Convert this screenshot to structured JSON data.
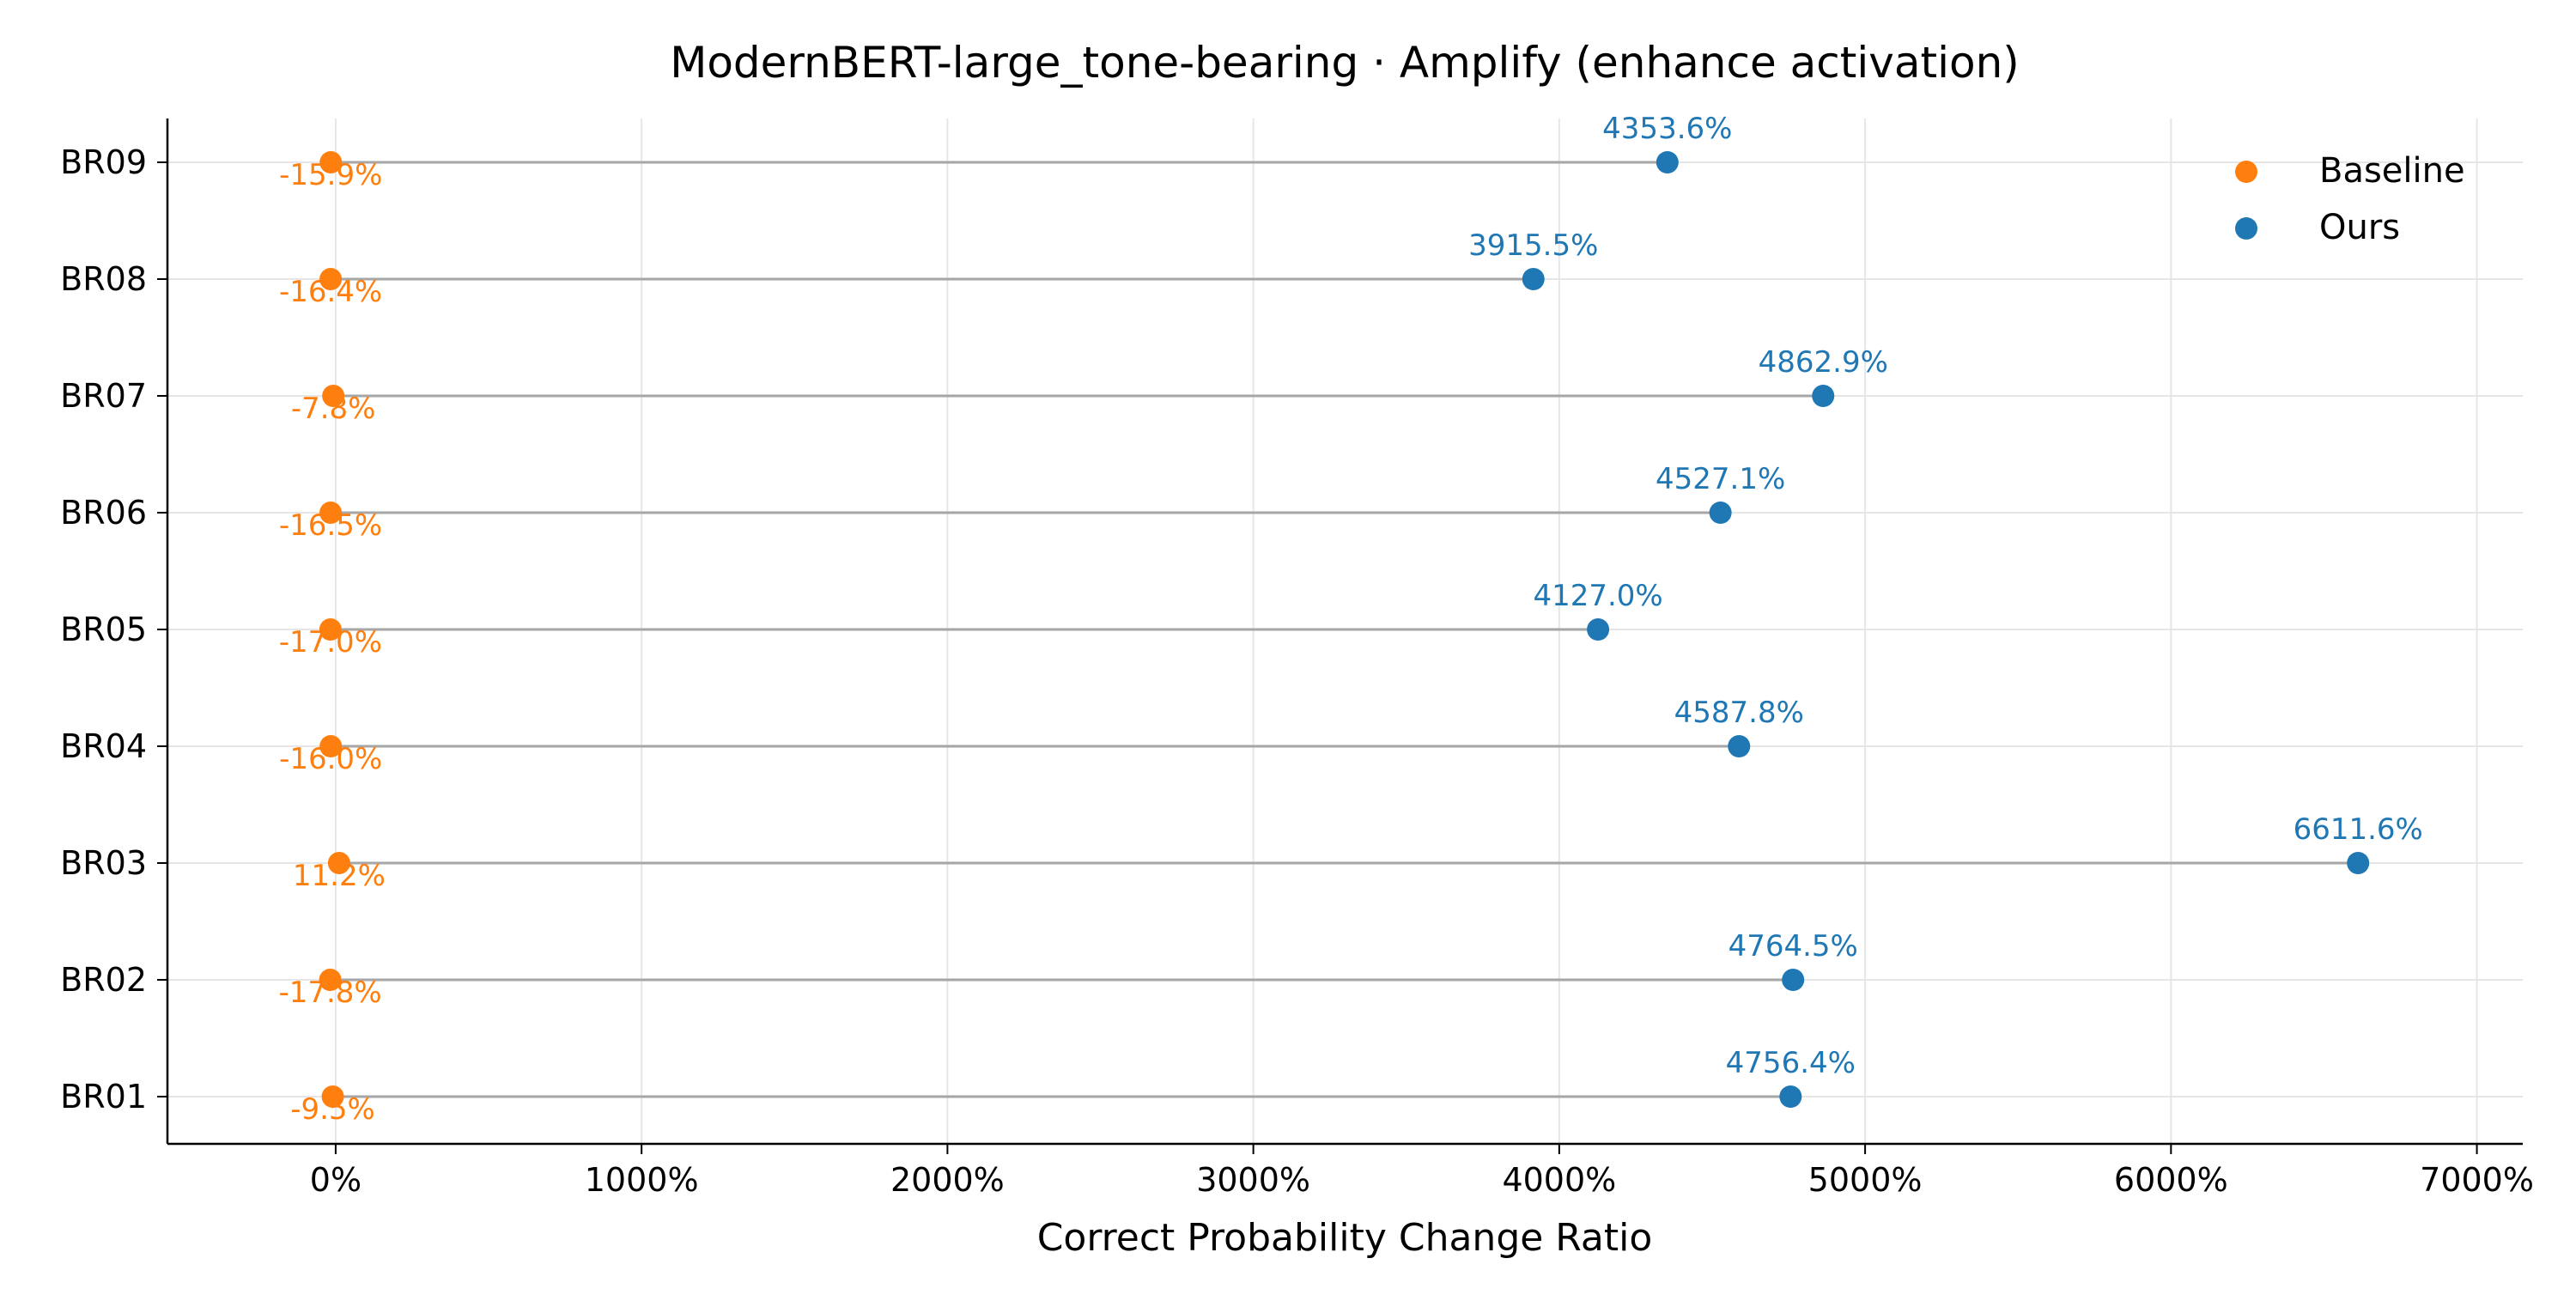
{
  "chart_data": {
    "type": "dumbbell",
    "title": "ModernBERT-large_tone-bearing · Amplify (enhance activation)",
    "xlabel": "Correct Probability Change Ratio",
    "ylabel": "",
    "xlim": [
      -550,
      7150
    ],
    "x_ticks": [
      0,
      1000,
      2000,
      3000,
      4000,
      5000,
      6000,
      7000
    ],
    "x_tick_labels": [
      "0%",
      "1000%",
      "2000%",
      "3000%",
      "4000%",
      "5000%",
      "6000%",
      "7000%"
    ],
    "categories": [
      "BR01",
      "BR02",
      "BR03",
      "BR04",
      "BR05",
      "BR06",
      "BR07",
      "BR08",
      "BR09"
    ],
    "grid": true,
    "legend_position": "top-right",
    "series": [
      {
        "name": "Baseline",
        "color": "#ff7f0e",
        "values": [
          -9.5,
          -17.8,
          11.2,
          -16.0,
          -17.0,
          -16.5,
          -7.8,
          -16.4,
          -15.9
        ],
        "labels": [
          "-9.5%",
          "-17.8%",
          "11.2%",
          "-16.0%",
          "-17.0%",
          "-16.5%",
          "-7.8%",
          "-16.4%",
          "-15.9%"
        ]
      },
      {
        "name": "Ours",
        "color": "#1f77b4",
        "values": [
          4756.4,
          4764.5,
          6611.6,
          4587.8,
          4127.0,
          4527.1,
          4862.9,
          3915.5,
          4353.6
        ],
        "labels": [
          "4756.4%",
          "4764.5%",
          "6611.6%",
          "4587.8%",
          "4127.0%",
          "4527.1%",
          "4862.9%",
          "3915.5%",
          "4353.6%"
        ]
      }
    ]
  }
}
